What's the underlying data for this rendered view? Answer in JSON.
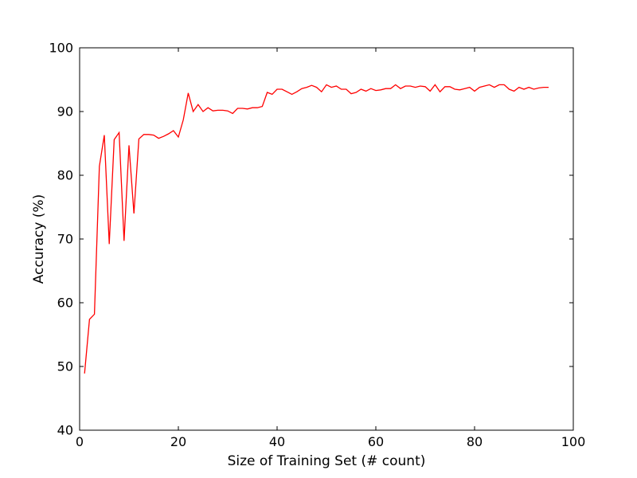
{
  "chart_data": {
    "type": "line",
    "title": "",
    "xlabel": "Size of Training Set (# count)",
    "ylabel": "Accuracy (%)",
    "xlim": [
      0,
      100
    ],
    "ylim": [
      40,
      100
    ],
    "xticks": [
      0,
      20,
      40,
      60,
      80,
      100
    ],
    "yticks": [
      40,
      50,
      60,
      70,
      80,
      90,
      100
    ],
    "xtick_labels": [
      "0",
      "20",
      "40",
      "60",
      "80",
      "100"
    ],
    "ytick_labels": [
      "40",
      "50",
      "60",
      "70",
      "80",
      "90",
      "100"
    ],
    "grid": false,
    "legend": "none",
    "series": [
      {
        "name": "accuracy",
        "color": "#ff0000",
        "x": [
          1,
          2,
          3,
          4,
          5,
          6,
          7,
          8,
          9,
          10,
          11,
          12,
          13,
          14,
          15,
          16,
          17,
          18,
          19,
          20,
          21,
          22,
          23,
          24,
          25,
          26,
          27,
          28,
          29,
          30,
          31,
          32,
          33,
          34,
          35,
          36,
          37,
          38,
          39,
          40,
          41,
          42,
          43,
          44,
          45,
          46,
          47,
          48,
          49,
          50,
          51,
          52,
          53,
          54,
          55,
          56,
          57,
          58,
          59,
          60,
          61,
          62,
          63,
          64,
          65,
          66,
          67,
          68,
          69,
          70,
          71,
          72,
          73,
          74,
          75,
          76,
          77,
          78,
          79,
          80,
          81,
          82,
          83,
          84,
          85,
          86,
          87,
          88,
          89,
          90,
          91,
          92,
          93,
          94,
          95
        ],
        "y": [
          48.9,
          57.4,
          58.2,
          81.4,
          86.3,
          69.2,
          85.6,
          86.7,
          69.7,
          84.7,
          74.0,
          85.7,
          86.4,
          86.4,
          86.3,
          85.8,
          86.1,
          86.5,
          87.0,
          86.0,
          88.7,
          92.9,
          90.0,
          91.1,
          90.0,
          90.6,
          90.1,
          90.2,
          90.2,
          90.1,
          89.7,
          90.5,
          90.5,
          90.4,
          90.6,
          90.6,
          90.8,
          93.0,
          92.7,
          93.5,
          93.5,
          93.1,
          92.7,
          93.1,
          93.6,
          93.8,
          94.1,
          93.8,
          93.1,
          94.2,
          93.8,
          94.0,
          93.5,
          93.5,
          92.8,
          93.0,
          93.5,
          93.2,
          93.6,
          93.3,
          93.4,
          93.6,
          93.6,
          94.2,
          93.6,
          94.0,
          94.0,
          93.8,
          94.0,
          93.9,
          93.2,
          94.2,
          93.1,
          93.9,
          93.9,
          93.5,
          93.4,
          93.6,
          93.8,
          93.2,
          93.8,
          94.0,
          94.2,
          93.8,
          94.2,
          94.2,
          93.5,
          93.2,
          93.8,
          93.5,
          93.8,
          93.5,
          93.7,
          93.8,
          93.8
        ]
      }
    ]
  }
}
